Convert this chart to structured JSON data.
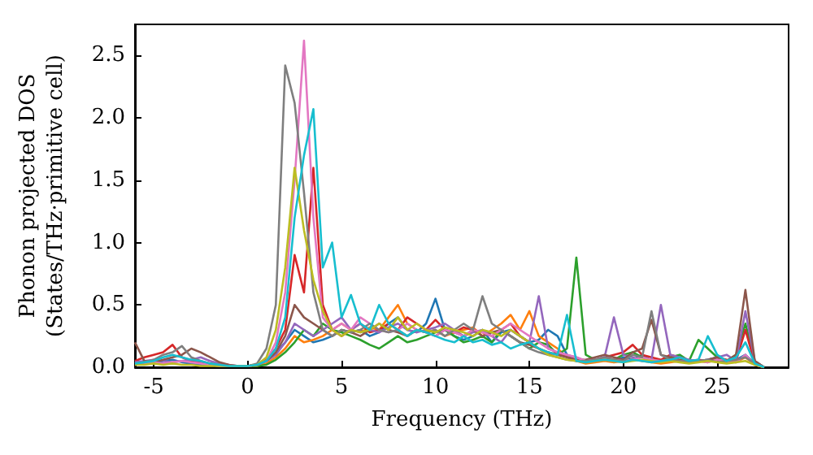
{
  "chart_data": {
    "type": "line",
    "xlabel": "Frequency (THz)",
    "ylabel": "Phonon projected DOS\n(States/THz·primitive cell)",
    "xlim": [
      -6,
      28.8
    ],
    "xticks": [
      -5,
      0,
      5,
      10,
      15,
      20,
      25
    ],
    "ylim": [
      0,
      2.75
    ],
    "yticks": [
      {
        "value": 0,
        "label": "0.0"
      },
      {
        "value": 0.5,
        "label": "0.5"
      },
      {
        "value": 1,
        "label": "1.0"
      },
      {
        "value": 1.5,
        "label": "1.5"
      },
      {
        "value": 2,
        "label": "2.0"
      },
      {
        "value": 2.5,
        "label": "2.5"
      }
    ],
    "grid": false,
    "marker": "none",
    "line_style": "solid",
    "x": [
      -6,
      -5.5,
      -5,
      -4.5,
      -4,
      -3.5,
      -3,
      -2.5,
      -2,
      -1.5,
      -1,
      -0.5,
      0,
      0.5,
      1,
      1.5,
      2,
      2.5,
      3,
      3.5,
      4,
      4.5,
      5,
      5.5,
      6,
      6.5,
      7,
      7.5,
      8,
      8.5,
      9,
      9.5,
      10,
      10.5,
      11,
      11.5,
      12,
      12.5,
      13,
      13.5,
      14,
      14.5,
      15,
      15.5,
      16,
      16.5,
      17,
      17.5,
      18,
      18.5,
      19,
      19.5,
      20,
      20.5,
      21,
      21.5,
      22,
      22.5,
      23,
      23.5,
      24,
      24.5,
      25,
      25.5,
      26,
      26.5,
      27,
      27.5
    ],
    "series": [
      {
        "color": "#1f77b4",
        "values": [
          0.05,
          0.04,
          0.03,
          0.05,
          0.06,
          0.04,
          0.03,
          0.02,
          0.02,
          0.01,
          0.01,
          0.01,
          0.01,
          0.02,
          0.05,
          0.12,
          0.2,
          0.3,
          0.25,
          0.2,
          0.22,
          0.25,
          0.3,
          0.28,
          0.3,
          0.25,
          0.28,
          0.35,
          0.4,
          0.3,
          0.28,
          0.35,
          0.55,
          0.3,
          0.25,
          0.22,
          0.25,
          0.3,
          0.2,
          0.28,
          0.3,
          0.25,
          0.2,
          0.22,
          0.3,
          0.25,
          0.1,
          0.05,
          0.04,
          0.05,
          0.06,
          0.05,
          0.08,
          0.06,
          0.1,
          0.05,
          0.04,
          0.06,
          0.05,
          0.04,
          0.05,
          0.06,
          0.08,
          0.05,
          0.06,
          0.1,
          0.03,
          0
        ]
      },
      {
        "color": "#ff7f0e",
        "values": [
          null,
          null,
          null,
          null,
          null,
          null,
          null,
          null,
          null,
          null,
          null,
          null,
          0.01,
          0.01,
          0.03,
          0.08,
          0.15,
          0.25,
          0.2,
          0.22,
          0.25,
          0.3,
          0.35,
          0.3,
          0.28,
          0.32,
          0.3,
          0.4,
          0.5,
          0.35,
          0.3,
          0.28,
          0.3,
          0.25,
          0.28,
          0.3,
          0.32,
          0.25,
          0.3,
          0.35,
          0.42,
          0.3,
          0.45,
          0.25,
          0.2,
          0.15,
          0.08,
          0.05,
          0.03,
          0.04,
          0.05,
          0.04,
          0.05,
          0.06,
          0.05,
          0.04,
          0.03,
          0.04,
          0.05,
          0.04,
          0.05,
          0.04,
          0.06,
          0.05,
          0.04,
          0.08,
          0.02,
          0
        ]
      },
      {
        "color": "#2ca02c",
        "values": [
          null,
          null,
          null,
          null,
          null,
          null,
          null,
          null,
          null,
          null,
          null,
          null,
          0.01,
          0.01,
          0.02,
          0.06,
          0.12,
          0.2,
          0.3,
          0.25,
          0.35,
          0.3,
          0.28,
          0.25,
          0.22,
          0.18,
          0.15,
          0.2,
          0.25,
          0.2,
          0.22,
          0.25,
          0.28,
          0.3,
          0.25,
          0.2,
          0.22,
          0.25,
          0.2,
          0.3,
          0.25,
          0.2,
          0.15,
          0.2,
          0.18,
          0.1,
          0.15,
          0.88,
          0.1,
          0.06,
          0.08,
          0.06,
          0.1,
          0.12,
          0.08,
          0.06,
          0.05,
          0.08,
          0.1,
          0.05,
          0.22,
          0.15,
          0.08,
          0.05,
          0.1,
          0.35,
          0.05,
          0
        ]
      },
      {
        "color": "#d62728",
        "values": [
          0.05,
          0.08,
          0.1,
          0.12,
          0.18,
          0.08,
          0.05,
          0.04,
          0.03,
          0.02,
          0.01,
          0.01,
          0.01,
          0.02,
          0.06,
          0.15,
          0.3,
          0.9,
          0.6,
          1.6,
          0.5,
          0.3,
          0.25,
          0.3,
          0.35,
          0.28,
          0.3,
          0.35,
          0.3,
          0.4,
          0.35,
          0.3,
          0.38,
          0.3,
          0.28,
          0.32,
          0.3,
          0.28,
          0.25,
          0.3,
          0.35,
          0.25,
          0.2,
          0.15,
          0.1,
          0.12,
          0.08,
          0.06,
          0.05,
          0.06,
          0.08,
          0.1,
          0.12,
          0.18,
          0.1,
          0.08,
          0.06,
          0.1,
          0.08,
          0.05,
          0.06,
          0.05,
          0.08,
          0.06,
          0.05,
          0.3,
          0.03,
          0
        ]
      },
      {
        "color": "#9467bd",
        "values": [
          0.04,
          0.05,
          0.06,
          0.05,
          0.04,
          0.05,
          0.06,
          0.08,
          0.05,
          0.03,
          0.02,
          0.01,
          0.01,
          0.02,
          0.05,
          0.1,
          0.2,
          0.35,
          0.3,
          0.25,
          0.3,
          0.35,
          0.4,
          0.3,
          0.35,
          0.3,
          0.28,
          0.32,
          0.35,
          0.3,
          0.28,
          0.3,
          0.32,
          0.35,
          0.3,
          0.25,
          0.28,
          0.3,
          0.25,
          0.2,
          0.3,
          0.25,
          0.2,
          0.57,
          0.15,
          0.12,
          0.1,
          0.08,
          0.05,
          0.06,
          0.08,
          0.4,
          0.1,
          0.08,
          0.05,
          0.06,
          0.5,
          0.1,
          0.08,
          0.06,
          0.05,
          0.06,
          0.08,
          0.1,
          0.05,
          0.45,
          0.05,
          0
        ]
      },
      {
        "color": "#8c564b",
        "values": [
          0.2,
          0.05,
          0.04,
          0.06,
          0.08,
          0.1,
          0.15,
          0.12,
          0.08,
          0.04,
          0.02,
          0.01,
          0.01,
          0.02,
          0.05,
          0.12,
          0.25,
          0.5,
          0.4,
          0.35,
          0.3,
          0.25,
          0.3,
          0.28,
          0.25,
          0.3,
          0.35,
          0.3,
          0.28,
          0.25,
          0.3,
          0.28,
          0.25,
          0.3,
          0.28,
          0.25,
          0.3,
          0.25,
          0.28,
          0.3,
          0.25,
          0.2,
          0.18,
          0.15,
          0.12,
          0.1,
          0.08,
          0.06,
          0.06,
          0.08,
          0.1,
          0.08,
          0.06,
          0.12,
          0.15,
          0.38,
          0.1,
          0.08,
          0.06,
          0.05,
          0.05,
          0.06,
          0.08,
          0.05,
          0.1,
          0.62,
          0.05,
          0
        ]
      },
      {
        "color": "#e377c2",
        "values": [
          0.02,
          0.03,
          0.04,
          0.03,
          0.04,
          0.05,
          0.04,
          0.03,
          0.02,
          0.01,
          0.01,
          0.01,
          0.01,
          0.02,
          0.05,
          0.2,
          0.6,
          1.5,
          2.62,
          1.2,
          0.4,
          0.3,
          0.35,
          0.3,
          0.4,
          0.35,
          0.3,
          0.28,
          0.3,
          0.35,
          0.3,
          0.28,
          0.25,
          0.3,
          0.28,
          0.25,
          0.3,
          0.28,
          0.25,
          0.3,
          0.35,
          0.3,
          0.25,
          0.2,
          0.15,
          0.12,
          0.1,
          0.08,
          0.05,
          0.06,
          0.08,
          0.06,
          0.05,
          0.06,
          0.08,
          0.06,
          0.05,
          0.06,
          0.05,
          0.04,
          0.05,
          0.04,
          0.06,
          0.05,
          0.04,
          0.1,
          0.02,
          0
        ]
      },
      {
        "color": "#7f7f7f",
        "values": [
          0.03,
          0.04,
          0.06,
          0.1,
          0.12,
          0.17,
          0.08,
          0.05,
          0.03,
          0.02,
          0.01,
          0.01,
          0.01,
          0.03,
          0.15,
          0.5,
          2.42,
          2.12,
          1.4,
          0.6,
          0.3,
          0.25,
          0.3,
          0.28,
          0.3,
          0.35,
          0.3,
          0.28,
          0.3,
          0.25,
          0.3,
          0.28,
          0.3,
          0.25,
          0.3,
          0.35,
          0.3,
          0.57,
          0.35,
          0.3,
          0.25,
          0.2,
          0.15,
          0.12,
          0.1,
          0.08,
          0.06,
          0.05,
          0.05,
          0.06,
          0.08,
          0.06,
          0.05,
          0.1,
          0.08,
          0.45,
          0.1,
          0.06,
          0.05,
          0.04,
          0.05,
          0.06,
          0.04,
          0.05,
          0.06,
          0.08,
          0.03,
          0
        ]
      },
      {
        "color": "#bcbd22",
        "values": [
          0.02,
          0.02,
          0.03,
          0.02,
          0.03,
          0.02,
          0.02,
          0.01,
          0.01,
          0.01,
          0.01,
          0.01,
          0.01,
          0.02,
          0.08,
          0.3,
          0.8,
          1.6,
          1.1,
          0.7,
          0.45,
          0.3,
          0.25,
          0.3,
          0.28,
          0.3,
          0.35,
          0.3,
          0.4,
          0.3,
          0.35,
          0.3,
          0.28,
          0.32,
          0.3,
          0.28,
          0.25,
          0.3,
          0.28,
          0.25,
          0.3,
          0.25,
          0.2,
          0.15,
          0.1,
          0.08,
          0.06,
          0.05,
          0.04,
          0.05,
          0.06,
          0.05,
          0.04,
          0.05,
          0.06,
          0.05,
          0.04,
          0.05,
          0.04,
          0.03,
          0.04,
          0.05,
          0.04,
          0.03,
          0.04,
          0.05,
          0.02,
          0
        ]
      },
      {
        "color": "#17becf",
        "values": [
          0.03,
          0.04,
          0.05,
          0.08,
          0.1,
          0.08,
          0.06,
          0.05,
          0.03,
          0.02,
          0.01,
          0.01,
          0.01,
          0.02,
          0.05,
          0.15,
          0.4,
          1.2,
          1.7,
          2.07,
          0.8,
          1.0,
          0.4,
          0.58,
          0.35,
          0.3,
          0.5,
          0.35,
          0.3,
          0.25,
          0.3,
          0.28,
          0.25,
          0.22,
          0.2,
          0.25,
          0.2,
          0.22,
          0.18,
          0.2,
          0.15,
          0.18,
          0.2,
          0.15,
          0.12,
          0.1,
          0.42,
          0.05,
          0.04,
          0.05,
          0.06,
          0.05,
          0.04,
          0.06,
          0.05,
          0.04,
          0.05,
          0.06,
          0.08,
          0.05,
          0.06,
          0.25,
          0.1,
          0.05,
          0.08,
          0.2,
          0.03,
          0
        ]
      }
    ]
  }
}
